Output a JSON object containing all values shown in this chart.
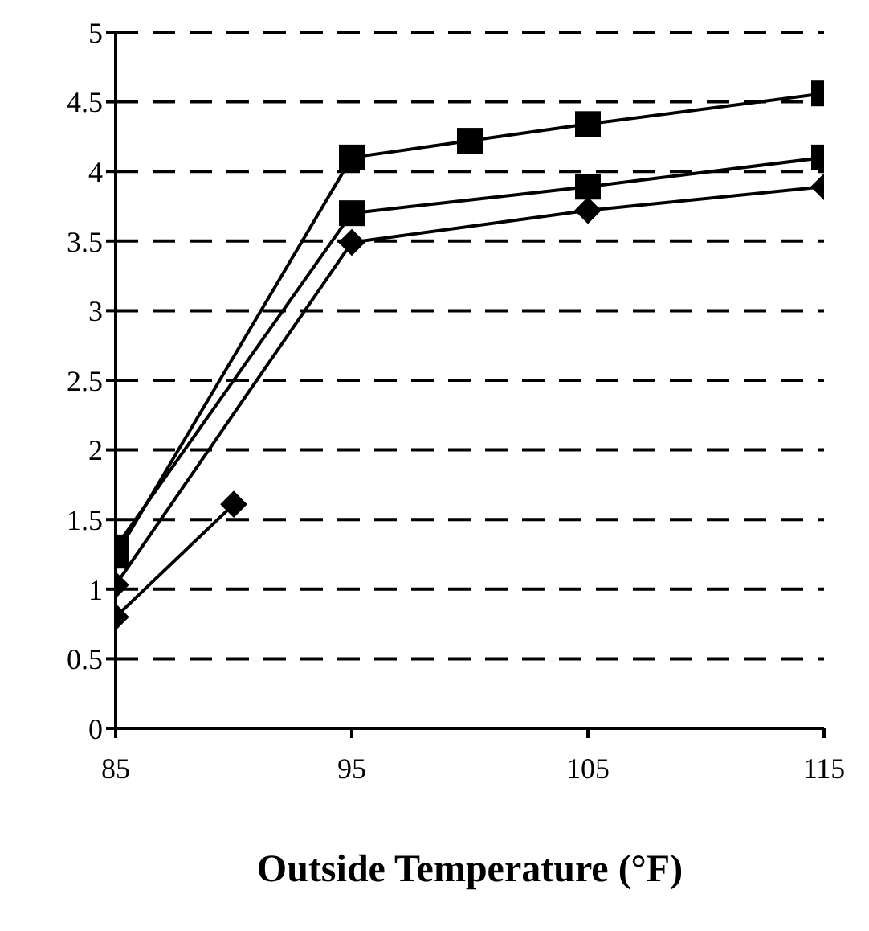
{
  "chart_data": {
    "type": "line",
    "xlabel": "Outside Temperature (°F)",
    "xlim": [
      85,
      115
    ],
    "xticks": [
      85,
      95,
      105,
      115
    ],
    "ylim": [
      0,
      5
    ],
    "yticks": [
      0,
      0.5,
      1,
      1.5,
      2,
      2.5,
      3,
      3.5,
      4,
      4.5,
      5
    ],
    "grid": "y",
    "line_style": "solid",
    "series": [
      {
        "color": "#000000",
        "marker": "square",
        "x": [
          85,
          95,
          100,
          105,
          115
        ],
        "values": [
          1.24,
          4.1,
          4.22,
          4.34,
          4.56
        ]
      },
      {
        "color": "#000000",
        "marker": "square",
        "x": [
          85,
          95,
          105,
          115
        ],
        "values": [
          1.3,
          3.7,
          3.89,
          4.1
        ]
      },
      {
        "color": "#000000",
        "marker": "diamond",
        "x": [
          85,
          95,
          105,
          115
        ],
        "values": [
          1.03,
          3.49,
          3.72,
          3.89
        ]
      },
      {
        "color": "#000000",
        "marker": "diamond",
        "x": [
          85,
          90
        ],
        "values": [
          0.8,
          1.61
        ]
      }
    ]
  }
}
